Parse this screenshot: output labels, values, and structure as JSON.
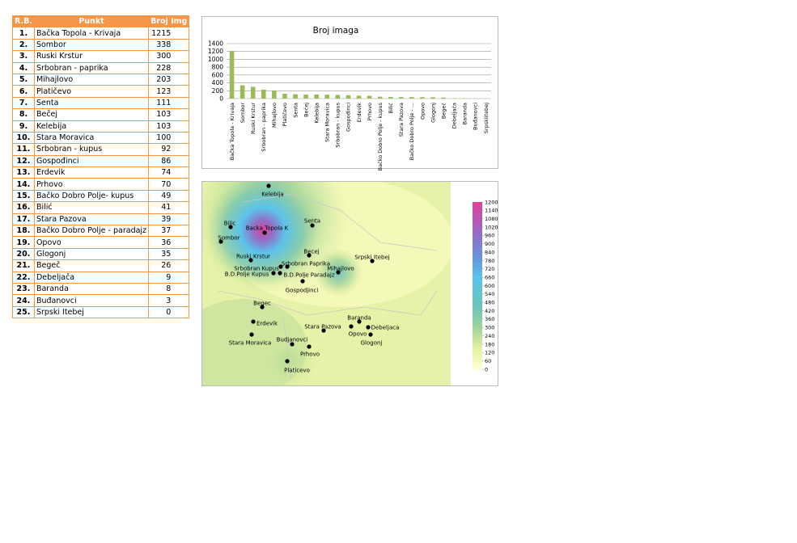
{
  "table": {
    "header": [
      "R.B.",
      "Punkt",
      "Broj Img"
    ],
    "rows": [
      [
        "1.",
        "Bačka Topola - Krivaja",
        1215
      ],
      [
        "2.",
        "Sombor",
        338
      ],
      [
        "3.",
        "Ruski Krstur",
        300
      ],
      [
        "4.",
        "Srbobran - paprika",
        228
      ],
      [
        "5.",
        "Mihajlovo",
        203
      ],
      [
        "6.",
        "Platičevo",
        123
      ],
      [
        "7.",
        "Senta",
        111
      ],
      [
        "8.",
        "Bečej",
        103
      ],
      [
        "9.",
        "Kelebija",
        103
      ],
      [
        "10.",
        "Stara Moravica",
        100
      ],
      [
        "11.",
        "Srbobran - kupus",
        92
      ],
      [
        "12.",
        "Gospođinci",
        86
      ],
      [
        "13.",
        "Erdevik",
        74
      ],
      [
        "14.",
        "Prhovo",
        70
      ],
      [
        "15.",
        "Bačko Dobro Polje- kupus",
        49
      ],
      [
        "16.",
        "Bilić",
        41
      ],
      [
        "17.",
        "Stara Pazova",
        39
      ],
      [
        "18.",
        "Bačko Dobro Polje - paradajz",
        37
      ],
      [
        "19.",
        "Opovo",
        36
      ],
      [
        "20.",
        "Glogonj",
        35
      ],
      [
        "21.",
        "Begeč",
        26
      ],
      [
        "22.",
        "Debeljača",
        9
      ],
      [
        "23.",
        "Baranda",
        8
      ],
      [
        "24.",
        "Buđanovci",
        3
      ],
      [
        "25.",
        "Srpski Itebej",
        0
      ]
    ]
  },
  "chart_data": {
    "type": "bar",
    "title": "Broj imaga",
    "color": "#9bbb59",
    "grid": true,
    "categories": [
      "Bačka Topola - Krivaja",
      "Sombor",
      "Ruski Krstur",
      "Srbobran - paprika",
      "Mihajlovo",
      "Platičevo",
      "Senta",
      "Bečej",
      "Kelebija",
      "Stara Moravica",
      "Srbobran - kupus",
      "Gospođinci",
      "Erdevik",
      "Prhovo",
      "Bačko Dobro Polje - kupus",
      "Bilić",
      "Stara Pazova",
      "Bačko Dobro Polje - ...",
      "Opovo",
      "Glogonj",
      "Begeč",
      "Debeljača",
      "Baranda",
      "Buđanovci",
      "Srpskiitebej"
    ],
    "values": [
      1215,
      338,
      300,
      228,
      203,
      123,
      111,
      103,
      103,
      100,
      92,
      86,
      74,
      70,
      49,
      41,
      39,
      37,
      36,
      35,
      26,
      9,
      8,
      3,
      0
    ],
    "ylim": [
      0,
      1400
    ],
    "yticks": [
      0,
      200,
      400,
      600,
      800,
      1000,
      1200,
      1400
    ]
  },
  "map": {
    "points": [
      {
        "label": "Kelebija"
      },
      {
        "label": "Bilic"
      },
      {
        "label": "Backa Topola K"
      },
      {
        "label": "Senta"
      },
      {
        "label": "Sombor"
      },
      {
        "label": "Becej"
      },
      {
        "label": "Srpski Itebej"
      },
      {
        "label": "Ruski Krstur"
      },
      {
        "label": "Srbobran Paprika"
      },
      {
        "label": "Srbobran Kupus"
      },
      {
        "label": "Mihajlovo"
      },
      {
        "label": "B.D.Polje Kupus"
      },
      {
        "label": "B.D.Polje Paradajz"
      },
      {
        "label": "Gospodjinci"
      },
      {
        "label": "Begec"
      },
      {
        "label": "Erdevik"
      },
      {
        "label": "Baranda"
      },
      {
        "label": "Debeljaca"
      },
      {
        "label": "Stara Pazova"
      },
      {
        "label": "Opovo"
      },
      {
        "label": "Stara Moravica"
      },
      {
        "label": "Glogonj"
      },
      {
        "label": "Budjanovci"
      },
      {
        "label": "Prhovo"
      },
      {
        "label": "Platicevo"
      }
    ],
    "legend_lim": [
      0,
      1200
    ],
    "legend_ticks": [
      0,
      60,
      120,
      180,
      240,
      300,
      360,
      420,
      480,
      540,
      600,
      660,
      720,
      780,
      840,
      900,
      960,
      1020,
      1080,
      1140,
      1200
    ]
  }
}
